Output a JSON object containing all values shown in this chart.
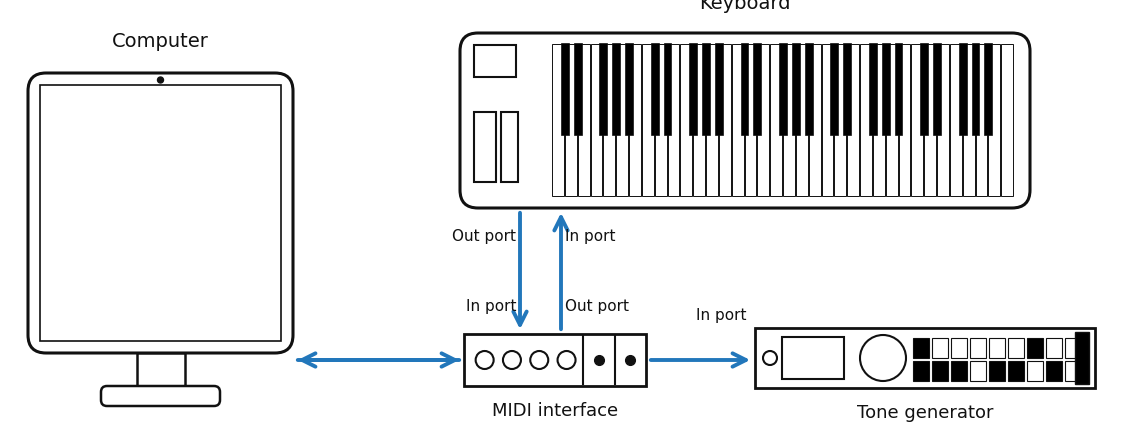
{
  "bg_color": "#ffffff",
  "arrow_color": "#2277bb",
  "line_color": "#111111",
  "text_color": "#111111",
  "title_computer": "Computer",
  "title_keyboard": "Keyboard",
  "title_midi": "MIDI interface",
  "title_tone": "Tone generator",
  "label_out_port_top": "Out port",
  "label_in_port_top": "In port",
  "label_in_port_bot": "In port",
  "label_out_port_bot": "Out port",
  "label_in_port_right": "In port",
  "figsize": [
    11.32,
    4.48
  ],
  "dpi": 100
}
